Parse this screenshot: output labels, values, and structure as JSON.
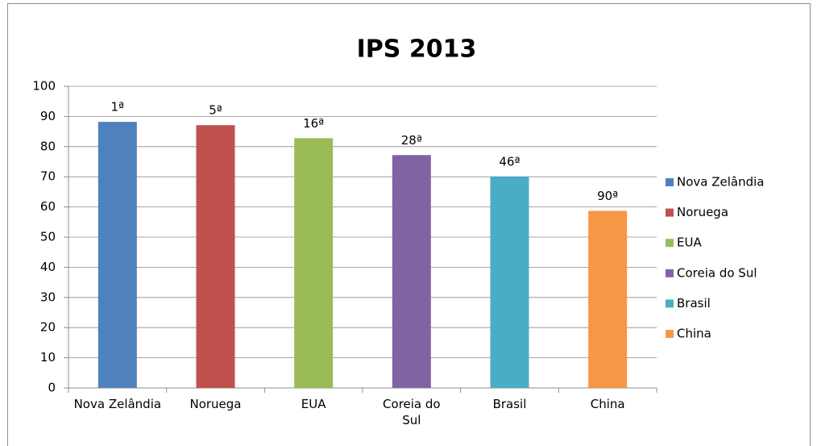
{
  "chart_data": {
    "type": "bar",
    "title": "IPS 2013",
    "categories": [
      "Nova Zelândia",
      "Noruega",
      "EUA",
      "Coreia do Sul",
      "Brasil",
      "China"
    ],
    "values": [
      88.2,
      87.1,
      82.8,
      77.2,
      70.1,
      58.7
    ],
    "annotations": [
      "1ª",
      "5ª",
      "16ª",
      "28ª",
      "46ª",
      "90ª"
    ],
    "colors": [
      "#4f81bd",
      "#c0504d",
      "#9bbb59",
      "#8064a2",
      "#4bacc6",
      "#f79646"
    ],
    "ylim": [
      0,
      100
    ],
    "yticks": [
      0,
      10,
      20,
      30,
      40,
      50,
      60,
      70,
      80,
      90,
      100
    ],
    "grid": true,
    "legend": "right"
  }
}
